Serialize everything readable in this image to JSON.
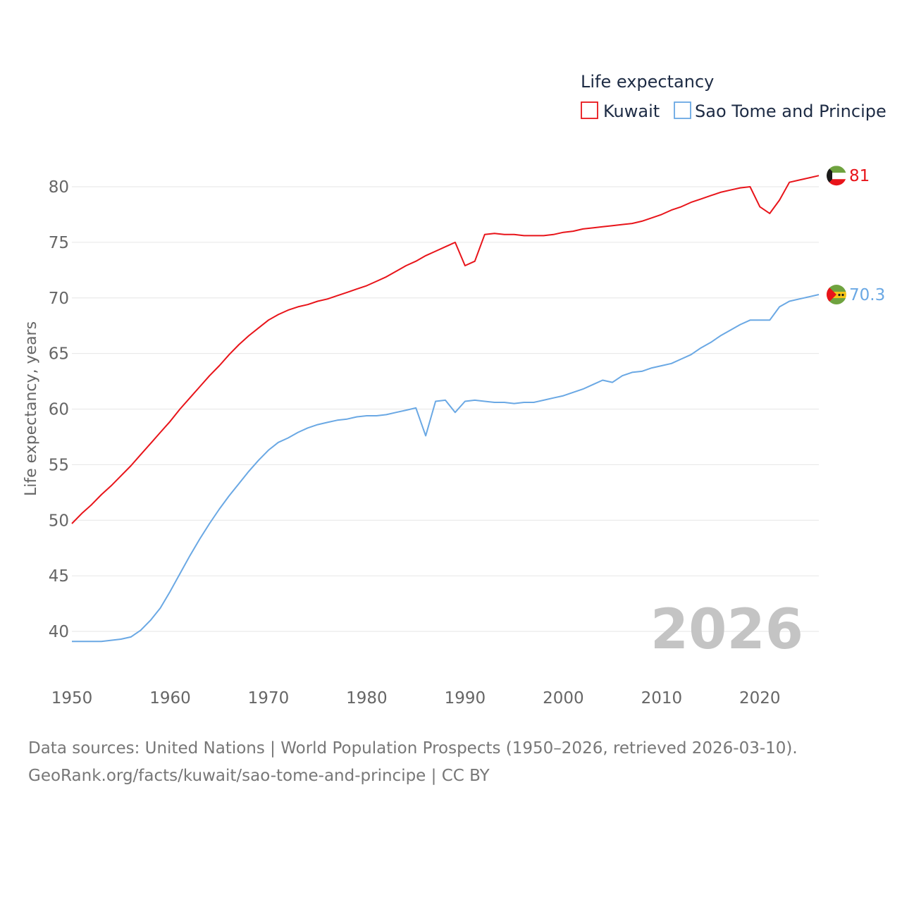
{
  "colors": {
    "kuwait": "#e8141a",
    "sao_tome": "#6aa8e4",
    "grid": "#e6e6e6",
    "tick": "#666666",
    "legend_text": "#1d2b44",
    "watermark": "#c4c4c4",
    "source_text": "#777777"
  },
  "chart_data": {
    "type": "line",
    "title": "",
    "legend_title": "Life expectancy",
    "legend_position": "top-right",
    "xlabel": "",
    "ylabel": "Life expectancy, years",
    "xlim": [
      1950,
      2026
    ],
    "ylim": [
      37,
      83
    ],
    "x_ticks": [
      1950,
      1960,
      1970,
      1980,
      1990,
      2000,
      2010,
      2020
    ],
    "y_ticks": [
      40,
      45,
      50,
      55,
      60,
      65,
      70,
      75,
      80
    ],
    "grid": true,
    "current_year": "2026",
    "x": [
      1950,
      1951,
      1952,
      1953,
      1954,
      1955,
      1956,
      1957,
      1958,
      1959,
      1960,
      1961,
      1962,
      1963,
      1964,
      1965,
      1966,
      1967,
      1968,
      1969,
      1970,
      1971,
      1972,
      1973,
      1974,
      1975,
      1976,
      1977,
      1978,
      1979,
      1980,
      1981,
      1982,
      1983,
      1984,
      1985,
      1986,
      1987,
      1988,
      1989,
      1990,
      1991,
      1992,
      1993,
      1994,
      1995,
      1996,
      1997,
      1998,
      1999,
      2000,
      2001,
      2002,
      2003,
      2004,
      2005,
      2006,
      2007,
      2008,
      2009,
      2010,
      2011,
      2012,
      2013,
      2014,
      2015,
      2016,
      2017,
      2018,
      2019,
      2020,
      2021,
      2022,
      2023,
      2024,
      2025,
      2026
    ],
    "series": [
      {
        "name": "Kuwait",
        "color_key": "kuwait",
        "end_label": "81",
        "values": [
          49.7,
          50.6,
          51.4,
          52.3,
          53.1,
          54.0,
          54.9,
          55.9,
          56.9,
          57.9,
          58.9,
          60.0,
          61.0,
          62.0,
          63.0,
          63.9,
          64.9,
          65.8,
          66.6,
          67.3,
          68.0,
          68.5,
          68.9,
          69.2,
          69.4,
          69.7,
          69.9,
          70.2,
          70.5,
          70.8,
          71.1,
          71.5,
          71.9,
          72.4,
          72.9,
          73.3,
          73.8,
          74.2,
          74.6,
          75.0,
          72.9,
          73.3,
          75.7,
          75.8,
          75.7,
          75.7,
          75.6,
          75.6,
          75.6,
          75.7,
          75.9,
          76.0,
          76.2,
          76.3,
          76.4,
          76.5,
          76.6,
          76.7,
          76.9,
          77.2,
          77.5,
          77.9,
          78.2,
          78.6,
          78.9,
          79.2,
          79.5,
          79.7,
          79.9,
          80.0,
          78.2,
          77.6,
          78.8,
          80.4,
          80.6,
          80.8,
          81.0
        ]
      },
      {
        "name": "Sao Tome and Principe",
        "color_key": "sao_tome",
        "end_label": "70.3",
        "values": [
          39.1,
          39.1,
          39.1,
          39.1,
          39.2,
          39.3,
          39.5,
          40.1,
          41.0,
          42.1,
          43.6,
          45.2,
          46.8,
          48.3,
          49.7,
          51.0,
          52.2,
          53.3,
          54.4,
          55.4,
          56.3,
          57.0,
          57.4,
          57.9,
          58.3,
          58.6,
          58.8,
          59.0,
          59.1,
          59.3,
          59.4,
          59.4,
          59.5,
          59.7,
          59.9,
          60.1,
          57.6,
          60.7,
          60.8,
          59.7,
          60.7,
          60.8,
          60.7,
          60.6,
          60.6,
          60.5,
          60.6,
          60.6,
          60.8,
          61.0,
          61.2,
          61.5,
          61.8,
          62.2,
          62.6,
          62.4,
          63.0,
          63.3,
          63.4,
          63.7,
          63.9,
          64.1,
          64.5,
          64.9,
          65.5,
          66.0,
          66.6,
          67.1,
          67.6,
          68.0,
          68.0,
          68.0,
          69.2,
          69.7,
          69.9,
          70.1,
          70.3
        ]
      }
    ]
  },
  "footer": {
    "source_line": "Data sources: United Nations | World Population Prospects (1950–2026, retrieved 2026-03-10).",
    "url_line": "GeoRank.org/facts/kuwait/sao-tome-and-principe | CC BY"
  },
  "icons": {
    "kuwait_marker": "kuwait-flag-icon",
    "sao_tome_marker": "sao-tome-flag-icon"
  }
}
